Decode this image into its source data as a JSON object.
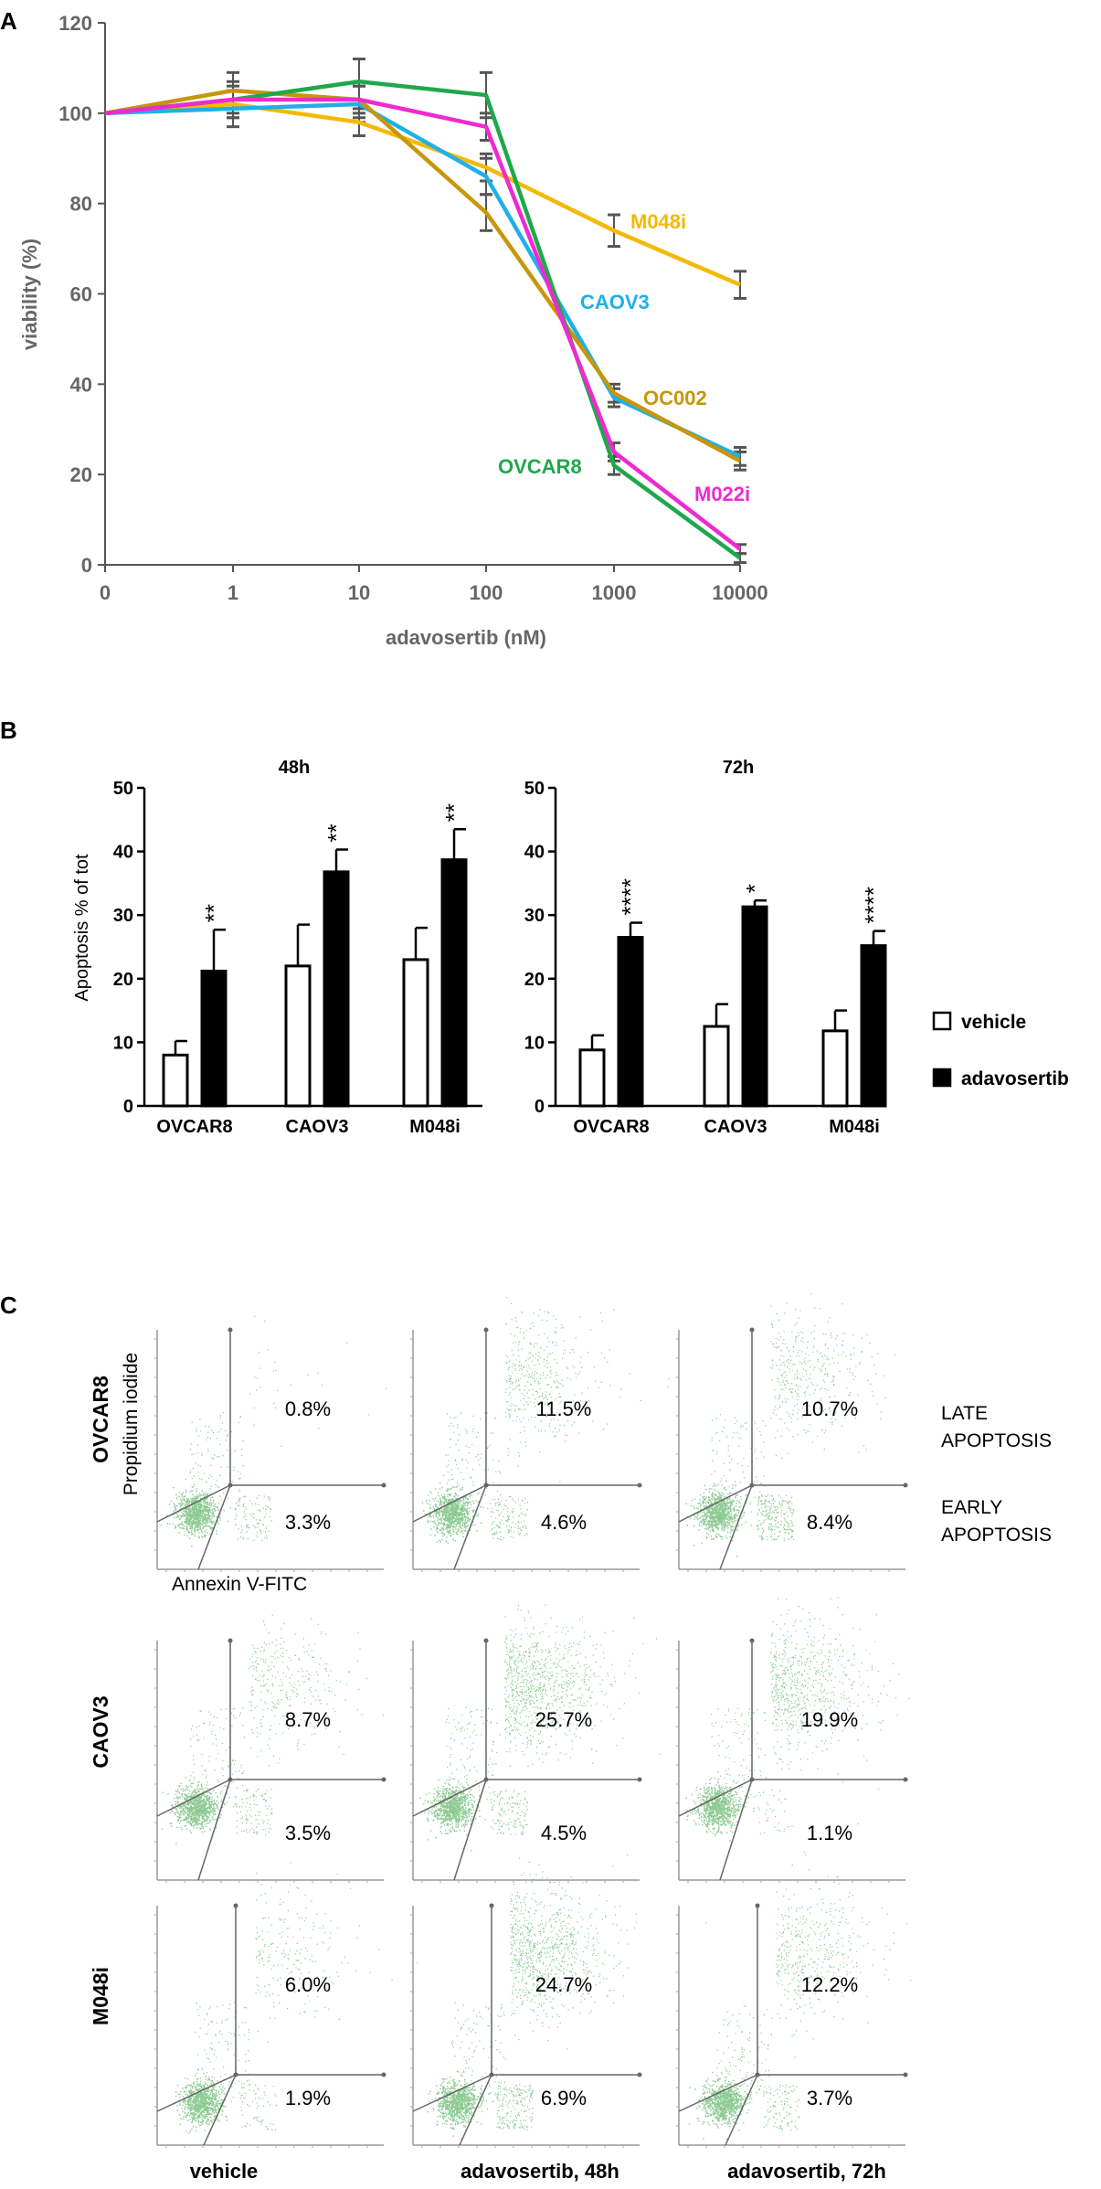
{
  "panel_labels": {
    "a": "A",
    "b": "B",
    "c": "C"
  },
  "chart_data": [
    {
      "type": "line",
      "panel": "A",
      "title": "",
      "xlabel": "adavosertib (nM)",
      "ylabel": "viability (%)",
      "x_categories": [
        "0",
        "1",
        "10",
        "100",
        "1000",
        "10000"
      ],
      "y_ticks": [
        "0",
        "20",
        "40",
        "60",
        "80",
        "100",
        "120"
      ],
      "ylim": [
        0,
        120
      ],
      "series": [
        {
          "name": "M048i",
          "color": "#f5b800",
          "values": [
            100,
            102,
            98,
            88,
            74,
            62
          ],
          "errors": [
            0,
            3,
            3,
            3,
            3.5,
            3
          ],
          "label_at": [
            1390,
            163,
            "#f5b800"
          ]
        },
        {
          "name": "CAOV3",
          "color": "#1fb0e8",
          "values": [
            100,
            101,
            102,
            86,
            37,
            24
          ],
          "errors": [
            0,
            4,
            4,
            4,
            2,
            2
          ],
          "label_at": [
            1300,
            225,
            "#1fb0e8"
          ]
        },
        {
          "name": "OC002",
          "color": "#c8960a",
          "values": [
            100,
            105,
            103,
            78,
            38,
            23
          ],
          "errors": [
            0,
            4,
            4,
            4,
            2,
            2
          ]
        },
        {
          "name": "OVCAR8",
          "color": "#1ea84a",
          "values": [
            100,
            103,
            107,
            104,
            22,
            1.5
          ],
          "errors": [
            0,
            4,
            5,
            5,
            2,
            1
          ]
        },
        {
          "name": "M022i",
          "color": "#ee2ad0",
          "values": [
            100,
            103,
            103,
            97,
            25,
            3.5
          ],
          "errors": [
            0,
            3,
            3,
            3,
            2,
            1
          ]
        }
      ]
    },
    {
      "type": "bar",
      "panel": "B",
      "title": "48h",
      "ylabel": "Apoptosis % of tot",
      "categories": [
        "OVCAR8",
        "CAOV3",
        "M048i"
      ],
      "y_ticks": [
        "0",
        "10",
        "20",
        "30",
        "40",
        "50"
      ],
      "ylim": [
        0,
        50
      ],
      "series": [
        {
          "name": "vehicle",
          "values": [
            8,
            22,
            23
          ],
          "errors": [
            2.2,
            6.5,
            5
          ]
        },
        {
          "name": "adavosertib",
          "values": [
            21.2,
            36.8,
            38.7
          ],
          "errors": [
            6.5,
            3.5,
            4.8
          ]
        }
      ],
      "significance": [
        "**",
        "**",
        "**"
      ]
    },
    {
      "type": "bar",
      "panel": "B",
      "title": "72h",
      "ylabel": "",
      "categories": [
        "OVCAR8",
        "CAOV3",
        "M048i"
      ],
      "y_ticks": [
        "0",
        "10",
        "20",
        "30",
        "40",
        "50"
      ],
      "ylim": [
        0,
        50
      ],
      "series": [
        {
          "name": "vehicle",
          "values": [
            8.8,
            12.5,
            11.8
          ],
          "errors": [
            2.3,
            3.5,
            3.2
          ]
        },
        {
          "name": "adavosertib",
          "values": [
            26.5,
            31.3,
            25.2
          ],
          "errors": [
            2.3,
            1,
            2.3
          ]
        }
      ],
      "significance": [
        "****",
        "*",
        "****"
      ]
    }
  ],
  "legend_b": {
    "vehicle": "vehicle",
    "adavosertib": "adavosertib"
  },
  "flow": {
    "rows": [
      "OVCAR8",
      "CAOV3",
      "M048i"
    ],
    "columns": [
      "vehicle",
      "adavosertib, 48h",
      "adavosertib, 72h"
    ],
    "upper_pct": [
      [
        "0.8%",
        "11.5%",
        "10.7%"
      ],
      [
        "8.7%",
        "25.7%",
        "19.9%"
      ],
      [
        "6.0%",
        "24.7%",
        "12.2%"
      ]
    ],
    "lower_pct": [
      [
        "3.3%",
        "4.6%",
        "8.4%"
      ],
      [
        "3.5%",
        "4.5%",
        "1.1%"
      ],
      [
        "1.9%",
        "6.9%",
        "3.7%"
      ]
    ],
    "y_axis_label": "Propidium iodide",
    "x_axis_label": "Annexin V-FITC",
    "late_label": [
      "LATE",
      "APOPTOSIS"
    ],
    "early_label": [
      "EARLY",
      "APOPTOSIS"
    ]
  }
}
